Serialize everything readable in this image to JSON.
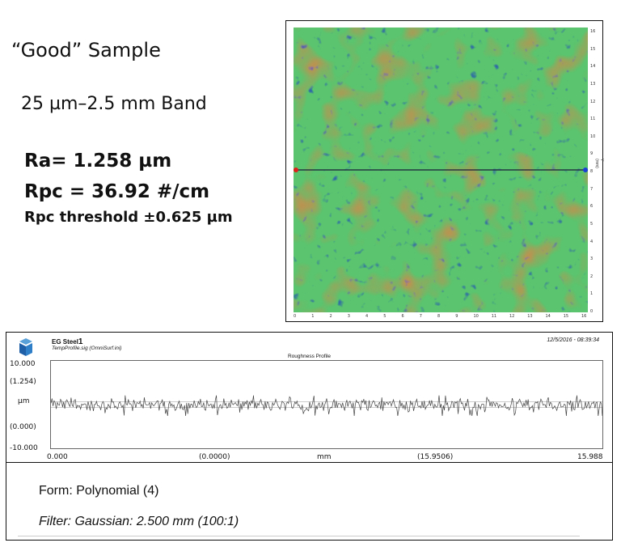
{
  "left_text": {
    "title": "“Good” Sample",
    "band": "25 µm–2.5 mm Band",
    "ra": "Ra= 1.258 µm",
    "rpc": "Rpc = 36.92 #/cm",
    "rpc_threshold": "Rpc threshold ±0.625 µm"
  },
  "surface_map": {
    "x_ticks": [
      "0",
      "1",
      "2",
      "3",
      "4",
      "5",
      "6",
      "7",
      "8",
      "9",
      "10",
      "11",
      "12",
      "13",
      "14",
      "15",
      "16"
    ],
    "y_ticks": [
      "0",
      "1",
      "2",
      "3",
      "4",
      "5",
      "6",
      "7",
      "8",
      "9",
      "10",
      "11",
      "12",
      "13",
      "14",
      "15",
      "16"
    ],
    "y_unit": "Y (mm)",
    "colors": {
      "base": "#4fbf73",
      "low": "#1a3fbf",
      "high": "#c9894a",
      "line": "#1a1a3a",
      "marker_left": "#e0201a",
      "marker_right": "#1b3fd6"
    }
  },
  "profile": {
    "name": "EG Steel",
    "name_suffix": "1",
    "file": "TempProfile.sig  (OmniSurf.ini)",
    "datetime": "12/5/2016 - 08:39:34",
    "plot_title": "Roughness Profile",
    "y_labels": [
      "10.000",
      "(1.254)",
      "µm",
      "(0.000)",
      "-10.000"
    ],
    "x_labels": [
      "0.000",
      "(0.0000)",
      "mm",
      "(15.9506)",
      "15.988"
    ]
  },
  "chart_data": {
    "type": "line",
    "title": "Roughness Profile",
    "xlabel": "mm",
    "ylabel": "µm",
    "xlim": [
      0,
      15.988
    ],
    "ylim": [
      -10,
      10
    ],
    "series": [
      {
        "values_note_free": true,
        "x_range": [
          0,
          15.988
        ],
        "y_range_approx": [
          -2.5,
          2.0
        ]
      }
    ],
    "threshold_lines": [
      0.625,
      -0.625
    ]
  },
  "settings": {
    "form": "Form: Polynomial (4)",
    "filter": "Filter: Gaussian: 2.500 mm (100:1)"
  }
}
